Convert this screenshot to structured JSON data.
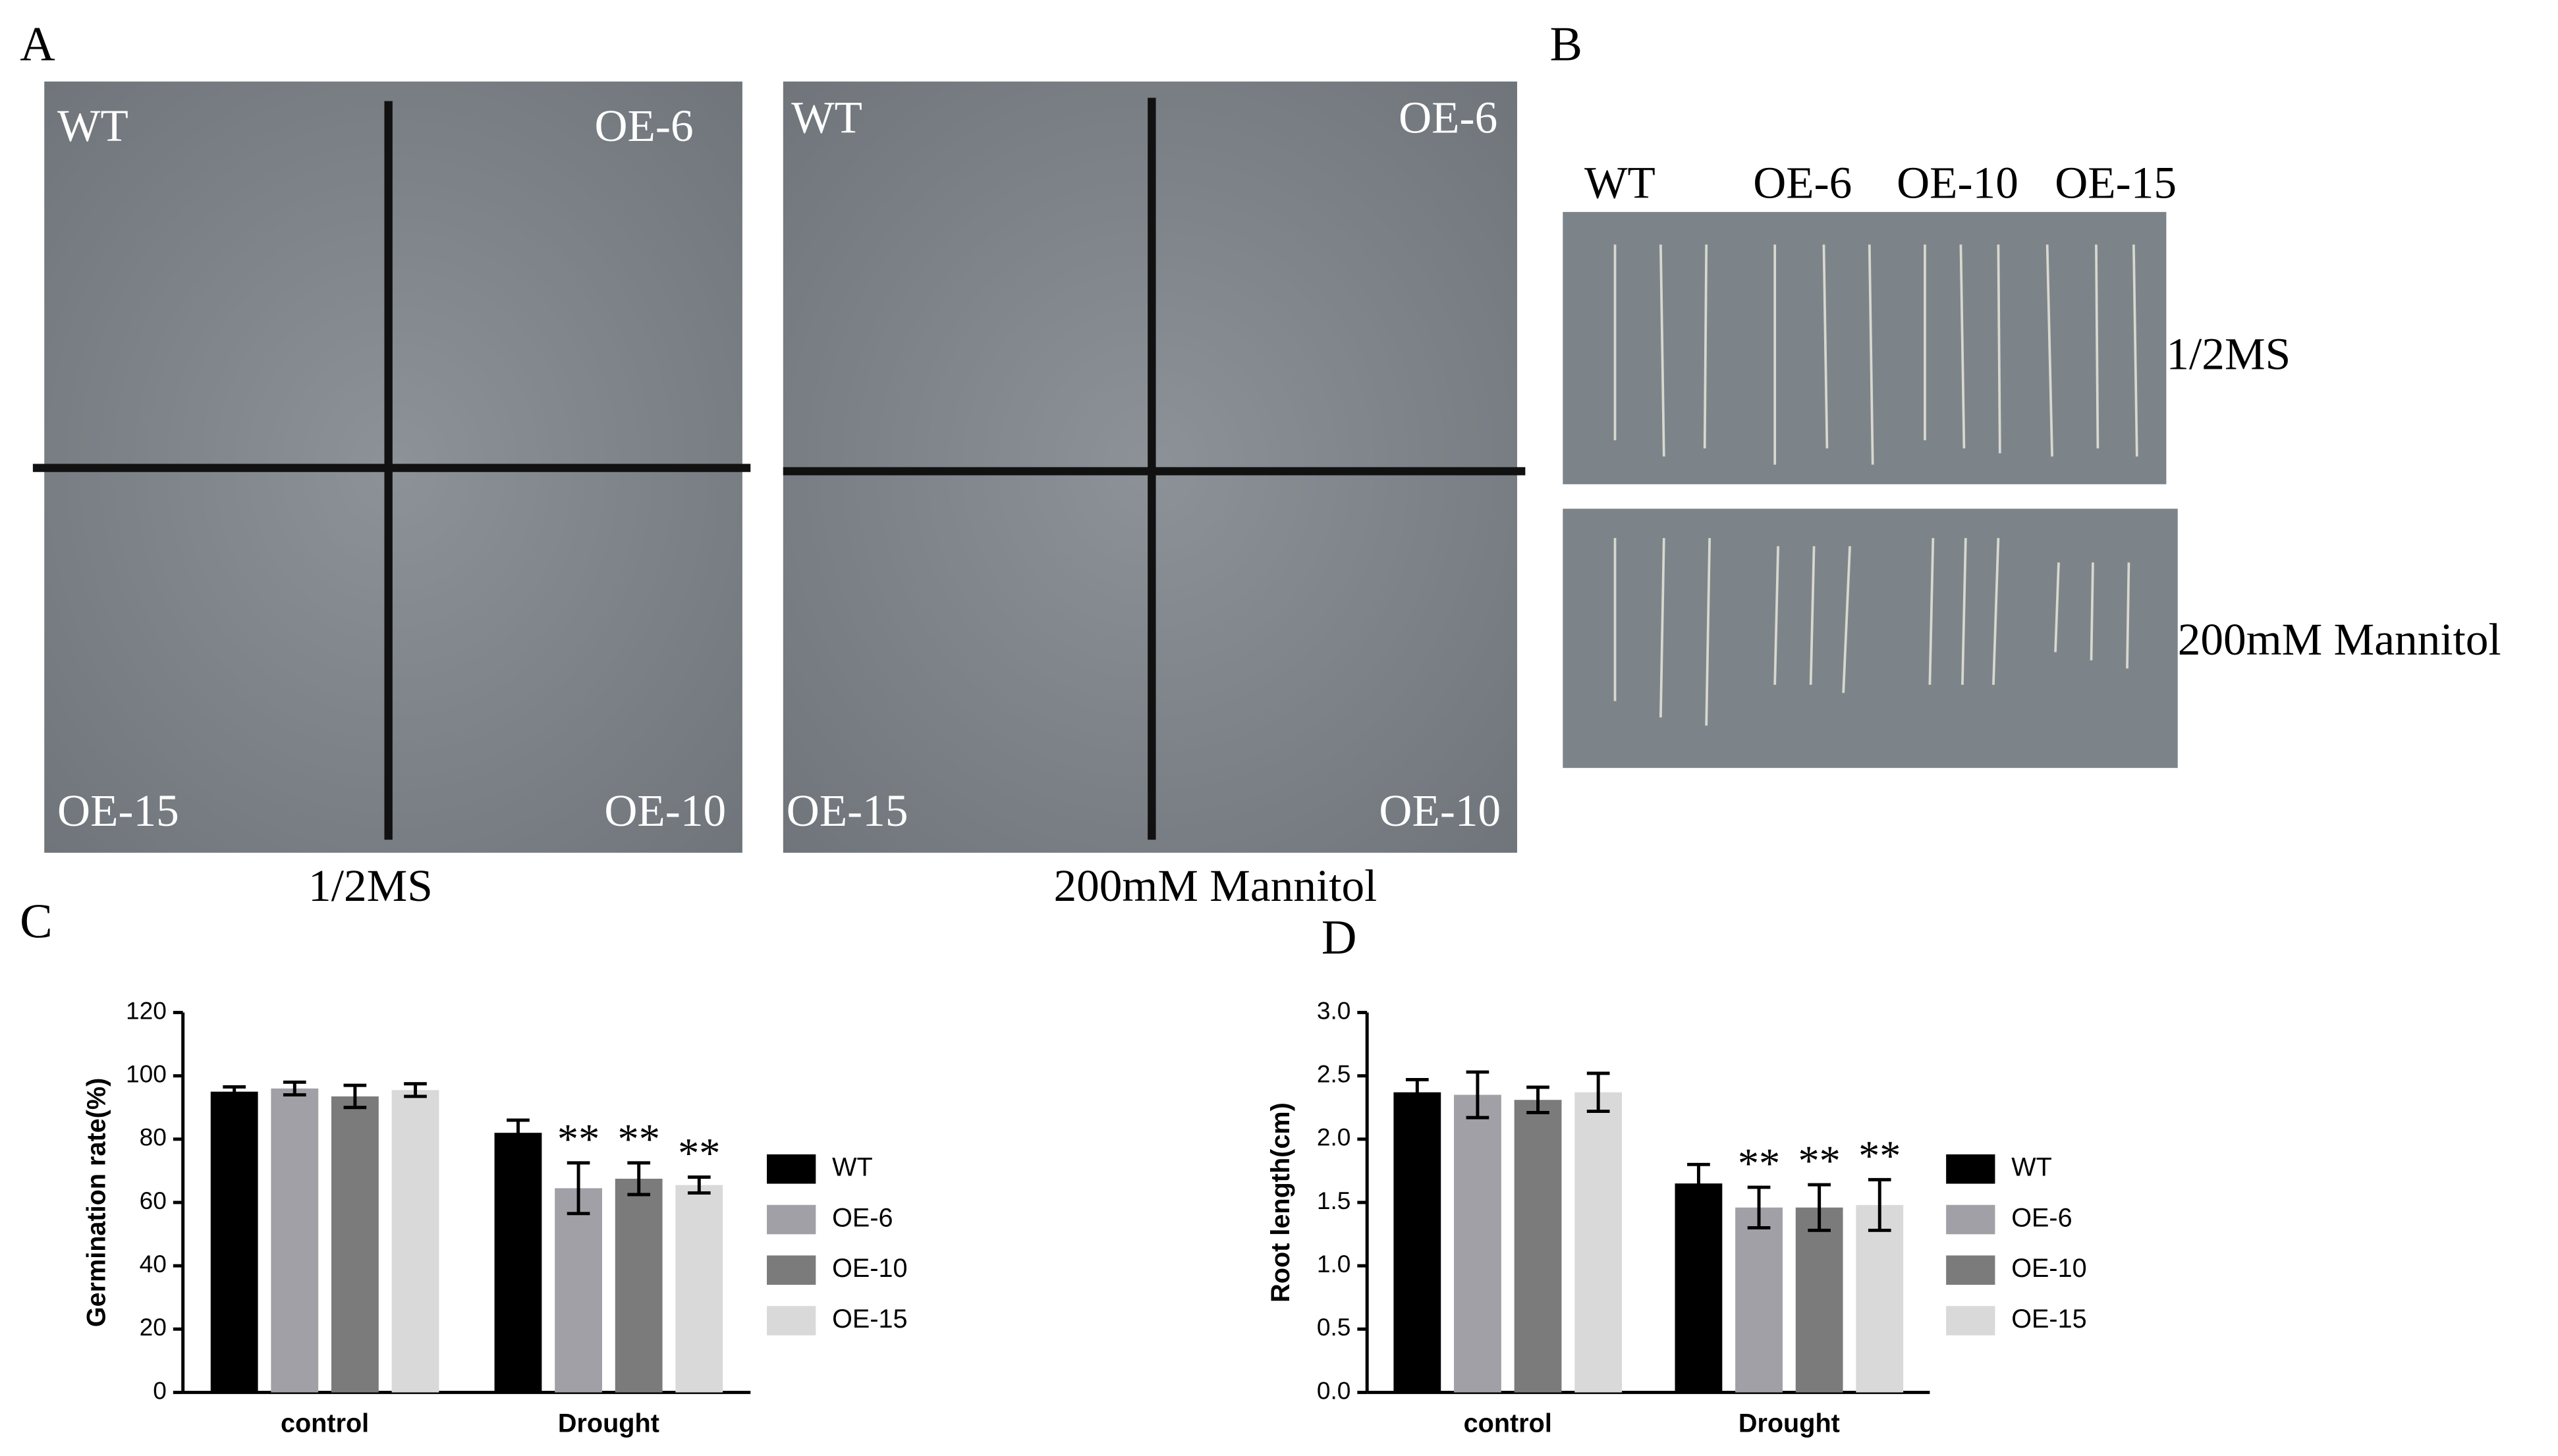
{
  "panel_labels": [
    "A",
    "B",
    "C",
    "D"
  ],
  "panel_a": {
    "plates": [
      {
        "caption": "1/2MS",
        "labels": [
          "WT",
          "OE-6",
          "OE-15",
          "OE-10"
        ]
      },
      {
        "caption": "200mM Mannitol",
        "labels": [
          "WT",
          "OE-6",
          "OE-15",
          "OE-10"
        ]
      }
    ]
  },
  "panel_b": {
    "lines": [
      "WT",
      "OE-6",
      "OE-10",
      "OE-15"
    ],
    "conditions": [
      "1/2MS",
      "200mM Mannitol"
    ]
  },
  "chart_data": [
    {
      "type": "bar",
      "y_label": "Germination rate(%)",
      "categories": [
        "control",
        "Drought"
      ],
      "ylim": [
        0,
        120
      ],
      "yticks": [
        0,
        20,
        40,
        60,
        80,
        100,
        120
      ],
      "legend": "right",
      "series": [
        {
          "name": "WT",
          "color": "#000000",
          "values": [
            95,
            82
          ],
          "errors": [
            1.5,
            4
          ],
          "significance": [
            null,
            null
          ]
        },
        {
          "name": "OE-6",
          "color": "#a0a0a6",
          "values": [
            96,
            64.5
          ],
          "errors": [
            2,
            8
          ],
          "significance": [
            null,
            "**"
          ]
        },
        {
          "name": "OE-10",
          "color": "#7b7b7b",
          "values": [
            93.5,
            67.5
          ],
          "errors": [
            3.5,
            5
          ],
          "significance": [
            null,
            "**"
          ]
        },
        {
          "name": "OE-15",
          "color": "#d9d9d9",
          "values": [
            95.5,
            65.5
          ],
          "errors": [
            2,
            2.5
          ],
          "significance": [
            null,
            "**"
          ]
        }
      ]
    },
    {
      "type": "bar",
      "y_label": "Root length(cm)",
      "categories": [
        "control",
        "Drought"
      ],
      "ylim": [
        0,
        3
      ],
      "yticks": [
        {
          "value": 0,
          "label": "0.0"
        },
        0.5,
        {
          "value": 1,
          "label": "1.0"
        },
        1.5,
        {
          "value": 2,
          "label": "2.0"
        },
        2.5,
        {
          "value": 3,
          "label": "3.0"
        }
      ],
      "legend": "right",
      "series": [
        {
          "name": "WT",
          "color": "#000000",
          "values": [
            2.37,
            1.65
          ],
          "errors": [
            0.1,
            0.15
          ],
          "significance": [
            null,
            null
          ]
        },
        {
          "name": "OE-6",
          "color": "#a0a0a6",
          "values": [
            2.35,
            1.46
          ],
          "errors": [
            0.18,
            0.16
          ],
          "significance": [
            null,
            "**"
          ]
        },
        {
          "name": "OE-10",
          "color": "#7b7b7b",
          "values": [
            2.31,
            1.46
          ],
          "errors": [
            0.1,
            0.18
          ],
          "significance": [
            null,
            "**"
          ]
        },
        {
          "name": "OE-15",
          "color": "#d9d9d9",
          "values": [
            2.37,
            1.48
          ],
          "errors": [
            0.15,
            0.2
          ],
          "significance": [
            null,
            "**"
          ]
        }
      ]
    }
  ]
}
